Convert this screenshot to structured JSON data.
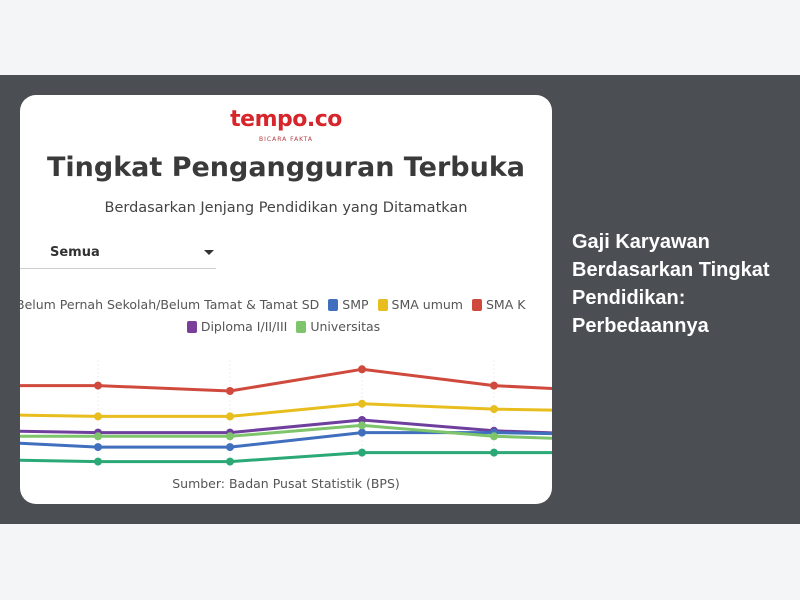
{
  "headline": "Gaji Karyawan Berdasarkan Tingkat Pendidikan: Perbedaannya",
  "logo": {
    "text": "tempo.co",
    "tagline": "BICARA FAKTA"
  },
  "filter": {
    "selected": "Semua"
  },
  "source": "Sumber: Badan Pusat Statistik (BPS)",
  "chart_data": {
    "type": "line",
    "title": "Tingkat Pengangguran Terbuka",
    "subtitle": "Berdasarkan Jenjang Pendidikan yang Ditamatkan",
    "xlabel": "",
    "ylabel": "",
    "grid": true,
    "legend_placement": "top",
    "ylim": [
      0,
      100
    ],
    "series": [
      {
        "name": "Belum Pernah Sekolah/Belum Tamat & Tamat SD",
        "color": "#6f3f9e",
        "legend": true,
        "values": [
          36,
          35,
          35,
          42,
          36,
          34
        ]
      },
      {
        "name": "SMP",
        "color": "#3f6fbd",
        "legend": true,
        "values": [
          30,
          27,
          27,
          35,
          35,
          34
        ]
      },
      {
        "name": "SMA umum",
        "color": "#e8bd1e",
        "legend": true,
        "values": [
          45,
          44,
          44,
          51,
          48,
          47
        ]
      },
      {
        "name": "SMA K",
        "color": "#cf4a3d",
        "legend": true,
        "values": [
          61,
          61,
          58,
          70,
          61,
          58
        ]
      },
      {
        "name": "Diploma I/II/III",
        "color": "#7a3e9a",
        "legend": true,
        "values": null
      },
      {
        "name": "Universitas",
        "color": "#7dc46b",
        "legend": true,
        "values": [
          33,
          33,
          33,
          39,
          33,
          31
        ]
      },
      {
        "name": "",
        "color": "#2aa876",
        "legend": false,
        "values": [
          20,
          19,
          19,
          24,
          24,
          24
        ]
      }
    ]
  }
}
